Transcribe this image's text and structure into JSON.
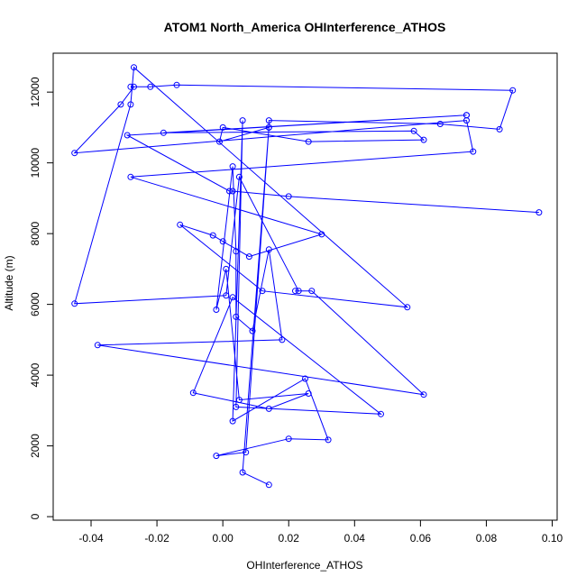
{
  "chart_data": {
    "type": "line",
    "title": "ATOM1 North_America OHInterference_ATHOS",
    "xlabel": "OHInterference_ATHOS",
    "ylabel": "Altitude (m)",
    "xlim": [
      -0.0515,
      0.1015
    ],
    "ylim": [
      -100,
      13100
    ],
    "x_ticks": [
      -0.04,
      -0.02,
      0.0,
      0.02,
      0.04,
      0.06,
      0.08,
      0.1
    ],
    "x_tick_labels": [
      "-0.04",
      "-0.02",
      "0.00",
      "0.02",
      "0.04",
      "0.06",
      "0.08",
      "0.10"
    ],
    "y_ticks": [
      0,
      2000,
      4000,
      6000,
      8000,
      10000,
      12000
    ],
    "y_tick_labels": [
      "0",
      "2000",
      "4000",
      "6000",
      "8000",
      "10000",
      "12000"
    ],
    "colors": {
      "series": "#0000ff",
      "axis": "#000000"
    },
    "series": [
      {
        "name": "OHInterference_ATHOS",
        "x": [
          0.014,
          0.006,
          0.014,
          0.007,
          -0.002,
          0.02,
          0.032,
          0.025,
          0.003,
          0.006,
          0.004,
          0.048,
          0.003,
          -0.009,
          0.014,
          0.026,
          0.005,
          0.001,
          -0.002,
          0.003,
          0.004,
          0.004,
          0.009,
          0.014,
          0.018,
          -0.038,
          0.061,
          0.027,
          0.022,
          0.023,
          0.005,
          0.001,
          -0.045,
          -0.028,
          -0.027,
          0.056,
          0.012,
          -0.013,
          -0.003,
          0.0,
          0.008,
          0.03,
          -0.028,
          0.076,
          0.074,
          -0.045,
          -0.031,
          -0.027,
          -0.028,
          -0.022,
          -0.014,
          0.088,
          0.084,
          0.066,
          0.014,
          0.014,
          -0.001,
          0.0,
          0.026,
          0.061,
          0.058,
          -0.018,
          0.074,
          0.074,
          -0.029,
          0.002,
          0.003,
          0.02,
          0.096
        ],
        "y": [
          900,
          1250,
          11000,
          1820,
          1720,
          2200,
          2170,
          3900,
          2700,
          11200,
          3100,
          2900,
          6200,
          3500,
          3050,
          3480,
          3300,
          7000,
          5850,
          9900,
          7500,
          5650,
          5250,
          7550,
          5000,
          4850,
          3450,
          6380,
          6380,
          6380,
          9600,
          6250,
          6020,
          11650,
          12700,
          5920,
          6380,
          8250,
          7950,
          7780,
          7350,
          7980,
          9600,
          10320,
          11200,
          10280,
          11650,
          12150,
          12150,
          12150,
          12200,
          12050,
          10950,
          11100,
          11200,
          11000,
          10600,
          11000,
          10600,
          10650,
          10900,
          10850,
          11350,
          11350,
          10780,
          9200,
          9200,
          9050,
          8600
        ]
      }
    ]
  }
}
